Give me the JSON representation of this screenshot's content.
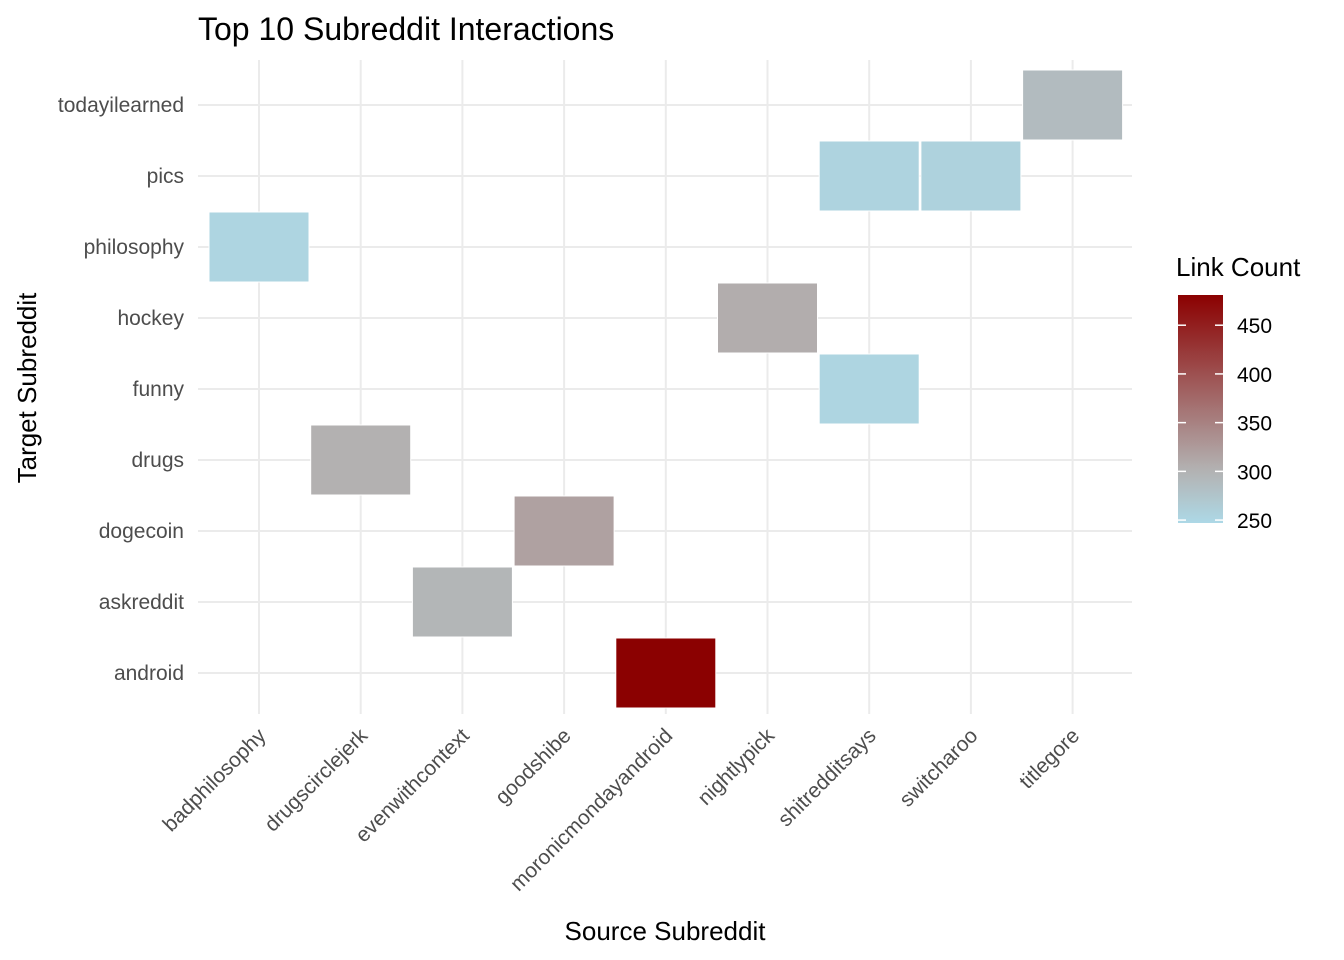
{
  "chart_data": {
    "type": "heatmap",
    "title": "Top 10 Subreddit Interactions",
    "xlabel": "Source Subreddit",
    "ylabel": "Target Subreddit",
    "x_categories": [
      "badphilosophy",
      "drugscirclejerk",
      "evenwithcontext",
      "goodshibe",
      "moronicmondayandroid",
      "nightlypick",
      "shitredditsays",
      "switcharoo",
      "titlegore"
    ],
    "y_categories": [
      "android",
      "askreddit",
      "dogecoin",
      "drugs",
      "funny",
      "hockey",
      "philosophy",
      "pics",
      "todayilearned"
    ],
    "cells": [
      {
        "x": "badphilosophy",
        "y": "philosophy",
        "value": 252
      },
      {
        "x": "drugscirclejerk",
        "y": "drugs",
        "value": 302
      },
      {
        "x": "evenwithcontext",
        "y": "askreddit",
        "value": 296
      },
      {
        "x": "goodshibe",
        "y": "dogecoin",
        "value": 318
      },
      {
        "x": "moronicmondayandroid",
        "y": "android",
        "value": 480
      },
      {
        "x": "nightlypick",
        "y": "hockey",
        "value": 306
      },
      {
        "x": "shitredditsays",
        "y": "pics",
        "value": 254
      },
      {
        "x": "shitredditsays",
        "y": "funny",
        "value": 252
      },
      {
        "x": "switcharoo",
        "y": "pics",
        "value": 256
      },
      {
        "x": "titlegore",
        "y": "todayilearned",
        "value": 288
      }
    ],
    "legend": {
      "title": "Link Count",
      "placement": "right",
      "ticks": [
        250,
        300,
        350,
        400,
        450
      ],
      "range": [
        247,
        481
      ],
      "low_color": "#ADD8E6",
      "mid_color": "#B3B3B3",
      "high_color": "#8B0000",
      "midpoint": 300
    },
    "grid": true
  }
}
